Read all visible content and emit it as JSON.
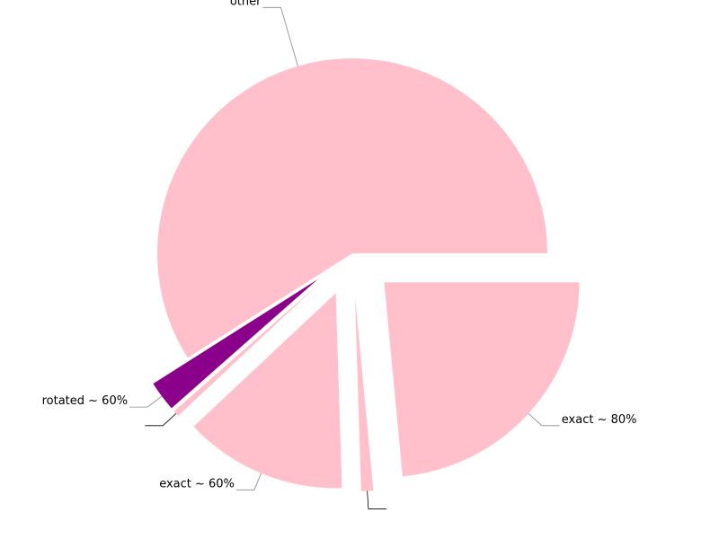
{
  "chart_data": {
    "type": "pie",
    "title": "",
    "slices": [
      {
        "label": "exact ~ 80%",
        "value": 23.5,
        "color": "#ffc0cb",
        "exploded": true
      },
      {
        "label": "",
        "value": 1.0,
        "color": "#ffc0cb",
        "exploded": true
      },
      {
        "label": "exact ~ 60%",
        "value": 13.5,
        "color": "#ffc0cb",
        "exploded": true
      },
      {
        "label": "",
        "value": 0.5,
        "color": "#ffc0cb",
        "exploded": true
      },
      {
        "label": "rotated ~ 60%",
        "value": 2.5,
        "color": "#8b008b",
        "exploded": true
      },
      {
        "label": "other",
        "value": 59.0,
        "color": "#ffc0cb",
        "exploded": false
      }
    ],
    "start_angle_deg": 0,
    "direction": "clockwise",
    "legend": "none"
  }
}
